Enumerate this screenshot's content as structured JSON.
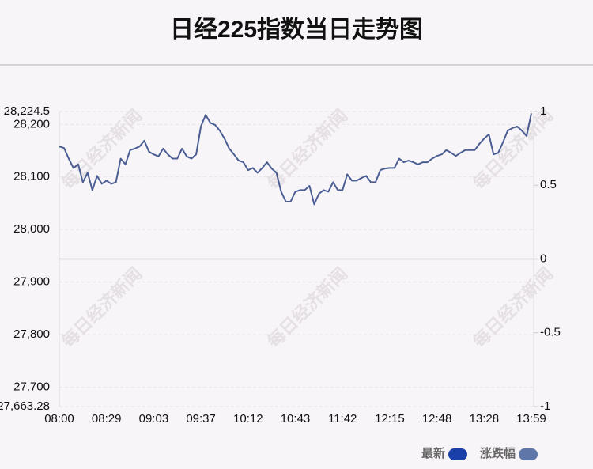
{
  "chart_data": {
    "type": "line",
    "title": "日经225指数当日走势图",
    "watermark": "每日经济新闻",
    "categories": [
      "08:00",
      null,
      null,
      null,
      null,
      null,
      null,
      null,
      null,
      null,
      "08:29",
      null,
      null,
      null,
      null,
      null,
      null,
      null,
      null,
      null,
      "09:03",
      null,
      null,
      null,
      null,
      null,
      null,
      null,
      null,
      null,
      "09:37",
      null,
      null,
      null,
      null,
      null,
      null,
      null,
      null,
      null,
      "10:12",
      null,
      null,
      null,
      null,
      null,
      null,
      null,
      null,
      null,
      "10:43",
      null,
      null,
      null,
      null,
      null,
      null,
      null,
      null,
      null,
      "11:42",
      null,
      null,
      null,
      null,
      null,
      null,
      null,
      null,
      null,
      "12:15",
      null,
      null,
      null,
      null,
      null,
      null,
      null,
      null,
      null,
      "12:48",
      null,
      null,
      null,
      null,
      null,
      null,
      null,
      null,
      null,
      "13:28",
      null,
      null,
      null,
      null,
      null,
      null,
      null,
      null,
      null,
      "13:59"
    ],
    "series": [
      {
        "name": "最新",
        "color": "#4b5e93",
        "values": [
          28158,
          28155,
          28135,
          28117,
          28124,
          28090,
          28108,
          28075,
          28102,
          28087,
          28093,
          28087,
          28090,
          28135,
          28124,
          28151,
          28154,
          28158,
          28169,
          28148,
          28143,
          28139,
          28154,
          28143,
          28135,
          28135,
          28154,
          28139,
          28135,
          28143,
          28196,
          28218,
          28203,
          28199,
          28188,
          28173,
          28154,
          28143,
          28131,
          28128,
          28113,
          28117,
          28108,
          28117,
          28128,
          28116,
          28108,
          28072,
          28053,
          28053,
          28072,
          28075,
          28075,
          28083,
          28048,
          28068,
          28075,
          28072,
          28090,
          28075,
          28075,
          28105,
          28093,
          28093,
          28098,
          28102,
          28090,
          28090,
          28113,
          28116,
          28117,
          28117,
          28135,
          28128,
          28131,
          28128,
          28124,
          28128,
          28128,
          28135,
          28140,
          28143,
          28151,
          28146,
          28140,
          28146,
          28151,
          28151,
          28151,
          28163,
          28173,
          28181,
          28143,
          28146,
          28166,
          28188,
          28193,
          28196,
          28188,
          28178,
          28221
        ]
      }
    ],
    "legend": [
      {
        "name": "最新",
        "color": "#1a3fa8"
      },
      {
        "name": "涨跌幅",
        "color": "#5f77a8"
      }
    ],
    "ylim": [
      27663.28,
      28224.5
    ],
    "yticks": [
      {
        "value": 28224.5,
        "label": "28,224.5"
      },
      {
        "value": 28200,
        "label": "28,200"
      },
      {
        "value": 28100,
        "label": "28,100"
      },
      {
        "value": 28000,
        "label": "28,000"
      },
      {
        "value": 27900,
        "label": "27,900"
      },
      {
        "value": 27800,
        "label": "27,800"
      },
      {
        "value": 27700,
        "label": "27,700"
      },
      {
        "value": 27663.28,
        "label": "27,663.28"
      }
    ],
    "y2lim": [
      -1,
      1
    ],
    "y2ticks": [
      1,
      0.5,
      0,
      -0.5,
      -1
    ],
    "grid": true
  }
}
